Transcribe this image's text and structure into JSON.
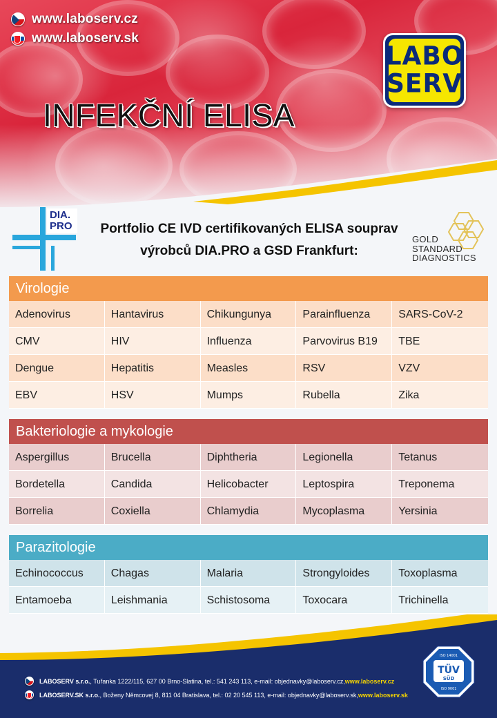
{
  "header": {
    "urls": [
      {
        "flag": "cz",
        "text": "www.laboserv.cz"
      },
      {
        "flag": "sk",
        "text": "www.laboserv.sk"
      }
    ],
    "logo": {
      "line1": "LABO",
      "line2": "SERV",
      "color_bg": "#0a2a7a",
      "color_fg": "#f6e600"
    },
    "title": "INFEKČNÍ ELISA"
  },
  "partners": {
    "diapro": {
      "line1": "DIA.",
      "line2": "PRO"
    },
    "subtitle_line1": "Portfolio CE IVD certifikovaných ELISA souprav",
    "subtitle_line2": "výrobců DIA.PRO a GSD Frankfurt:",
    "gsd": {
      "line1": "GOLD",
      "line2": "STANDARD",
      "line3": "DIAGNOSTICS"
    }
  },
  "sections": {
    "virologie": {
      "title": "Virologie",
      "color": "#f39a4d",
      "rows": [
        [
          "Adenovirus",
          "Hantavirus",
          "Chikungunya",
          "Parainfluenza",
          "SARS-CoV-2"
        ],
        [
          "CMV",
          "HIV",
          "Influenza",
          "Parvovirus B19",
          "TBE"
        ],
        [
          "Dengue",
          "Hepatitis",
          "Measles",
          "RSV",
          "VZV"
        ],
        [
          "EBV",
          "HSV",
          "Mumps",
          "Rubella",
          "Zika"
        ]
      ]
    },
    "bakteriologie": {
      "title": "Bakteriologie a mykologie",
      "color": "#c0504d",
      "rows": [
        [
          "Aspergillus",
          "Brucella",
          "Diphtheria",
          "Legionella",
          "Tetanus"
        ],
        [
          "Bordetella",
          "Candida",
          "Helicobacter",
          "Leptospira",
          "Treponema"
        ],
        [
          "Borrelia",
          "Coxiella",
          "Chlamydia",
          "Mycoplasma",
          "Yersinia"
        ]
      ]
    },
    "parazitologie": {
      "title": "Parazitologie",
      "color": "#4bacc6",
      "rows": [
        [
          "Echinococcus",
          "Chagas",
          "Malaria",
          "Strongyloides",
          "Toxoplasma"
        ],
        [
          "Entamoeba",
          "Leishmania",
          "Schistosoma",
          "Toxocara",
          "Trichinella"
        ]
      ]
    }
  },
  "footer": {
    "cz": {
      "company": "LABOSERV s.r.o.",
      "address": ", Tuřanka 1222/115, 627 00 Brno-Slatina, tel.: 541 243 113, e-mail: objednavky@laboserv.cz, ",
      "link": "www.laboserv.cz"
    },
    "sk": {
      "company": "LABOSERV.SK s.r.o.",
      "address": ", Boženy Němcovej 8, 811 04 Bratislava, tel.: 02 20 545 113, e-mail: objednavky@laboserv.sk, ",
      "link": "www.laboserv.sk"
    },
    "tuv": {
      "top": "ISO 14001",
      "name": "TÜV",
      "sub": "SÜD",
      "bottom": "ISO 9001"
    }
  }
}
